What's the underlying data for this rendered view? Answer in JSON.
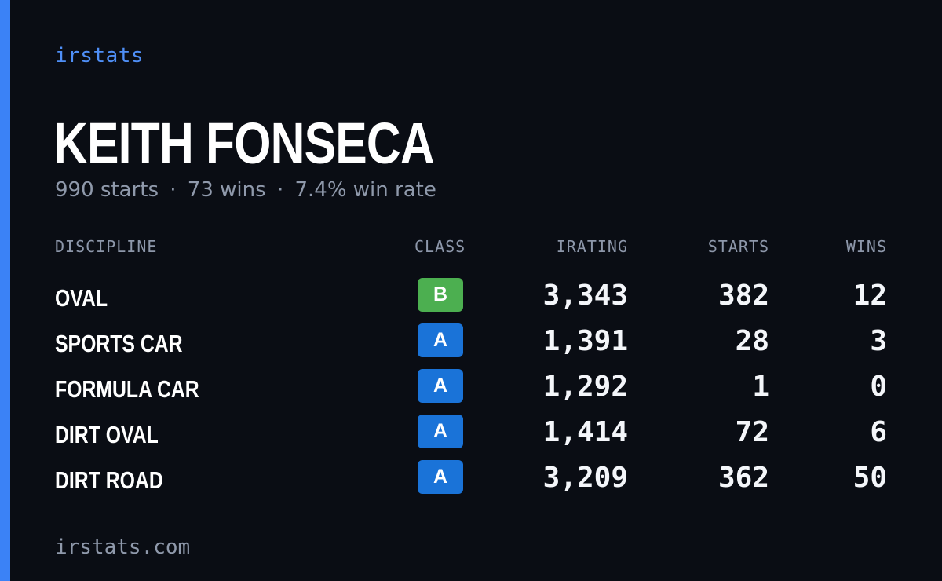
{
  "brand": "irstats",
  "driver": {
    "name": "KEITH FONSECA",
    "starts_text": "990 starts",
    "wins_text": "73 wins",
    "win_rate_text": "7.4% win rate",
    "separator": "·"
  },
  "table": {
    "headers": {
      "discipline": "DISCIPLINE",
      "class": "CLASS",
      "irating": "IRATING",
      "starts": "STARTS",
      "wins": "WINS"
    },
    "rows": [
      {
        "discipline": "OVAL",
        "class": "B",
        "class_color": "#4caf50",
        "irating": "3,343",
        "starts": "382",
        "wins": "12"
      },
      {
        "discipline": "SPORTS CAR",
        "class": "A",
        "class_color": "#1a73d8",
        "irating": "1,391",
        "starts": "28",
        "wins": "3"
      },
      {
        "discipline": "FORMULA CAR",
        "class": "A",
        "class_color": "#1a73d8",
        "irating": "1,292",
        "starts": "1",
        "wins": "0"
      },
      {
        "discipline": "DIRT OVAL",
        "class": "A",
        "class_color": "#1a73d8",
        "irating": "1,414",
        "starts": "72",
        "wins": "6"
      },
      {
        "discipline": "DIRT ROAD",
        "class": "A",
        "class_color": "#1a73d8",
        "irating": "3,209",
        "starts": "362",
        "wins": "50"
      }
    ]
  },
  "footer": "irstats.com",
  "colors": {
    "background": "#0a0d14",
    "accent": "#3b82f6",
    "class_a": "#1a73d8",
    "class_b": "#4caf50"
  }
}
